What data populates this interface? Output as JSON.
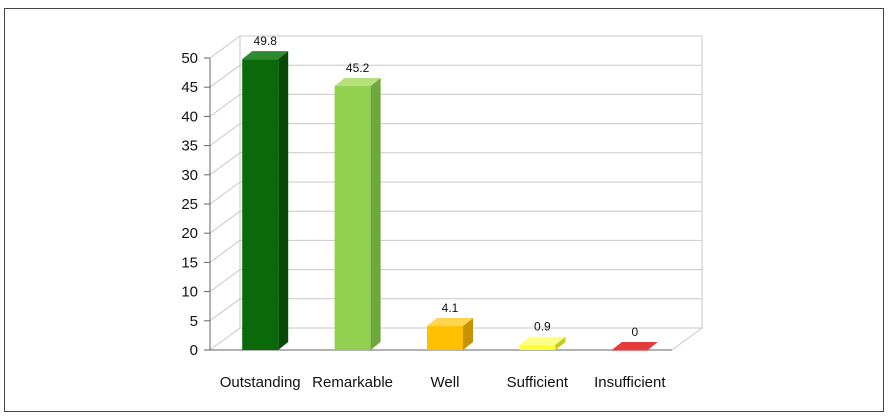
{
  "chart_data": {
    "type": "bar",
    "categories": [
      "Outstanding",
      "Remarkable",
      "Well",
      "Sufficient",
      "Insufficient"
    ],
    "values": [
      49.8,
      45.2,
      4.1,
      0.9,
      0
    ],
    "data_labels": [
      "49.8",
      "45.2",
      "4.1",
      "0.9",
      "0"
    ],
    "ylim": [
      0,
      50
    ],
    "yticks": [
      "0",
      "5",
      "10",
      "15",
      "20",
      "25",
      "30",
      "35",
      "40",
      "45",
      "50"
    ],
    "grid": true,
    "three_d": true,
    "colors": {
      "front": [
        "#0a6a0a",
        "#92d050",
        "#ffc000",
        "#ffff33",
        "#cc0000"
      ],
      "top": [
        "#2f8a2f",
        "#b5e07a",
        "#ffd451",
        "#ffff88",
        "#e23b3b"
      ],
      "side": [
        "#064a06",
        "#6fa83a",
        "#c79400",
        "#c8c820",
        "#8f0000"
      ]
    }
  }
}
